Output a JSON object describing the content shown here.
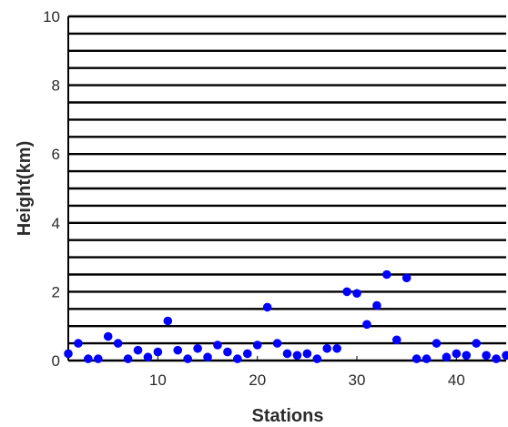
{
  "chart_data": {
    "type": "scatter",
    "xlabel": "Stations",
    "ylabel": "Height(km)",
    "xlim": [
      1,
      45
    ],
    "ylim": [
      0,
      10
    ],
    "xticks": [
      10,
      20,
      30,
      40
    ],
    "yticks": [
      0,
      2,
      4,
      6,
      8,
      10
    ],
    "horizontal_lines_y": [
      0,
      0.5,
      1,
      1.5,
      2,
      2.5,
      3,
      3.5,
      4,
      4.5,
      5,
      5.5,
      6,
      6.5,
      7,
      7.5,
      8,
      8.5,
      9,
      9.5,
      10
    ],
    "grid": false,
    "marker_color": "#0000ff",
    "line_color": "#000000",
    "series": [
      {
        "x": [
          1,
          2,
          3,
          4,
          5,
          6,
          7,
          8,
          9,
          10,
          11,
          12,
          13,
          14,
          15,
          16,
          17,
          18,
          19,
          20,
          21,
          22,
          23,
          24,
          25,
          26,
          27,
          28,
          29,
          30,
          31,
          32,
          33,
          34,
          35,
          36,
          37,
          38,
          39,
          40,
          41,
          42,
          43,
          44,
          45
        ],
        "values": [
          0.2,
          0.5,
          0.05,
          0.05,
          0.7,
          0.5,
          0.05,
          0.3,
          0.1,
          0.25,
          1.15,
          0.3,
          0.05,
          0.35,
          0.1,
          0.45,
          0.25,
          0.05,
          0.2,
          0.45,
          1.55,
          0.5,
          0.2,
          0.15,
          0.2,
          0.05,
          0.35,
          0.35,
          2.0,
          1.95,
          1.05,
          1.6,
          2.5,
          0.6,
          2.4,
          0.05,
          0.05,
          0.5,
          0.1,
          0.2,
          0.15,
          0.5,
          0.15,
          0.05,
          0.15
        ]
      }
    ]
  }
}
